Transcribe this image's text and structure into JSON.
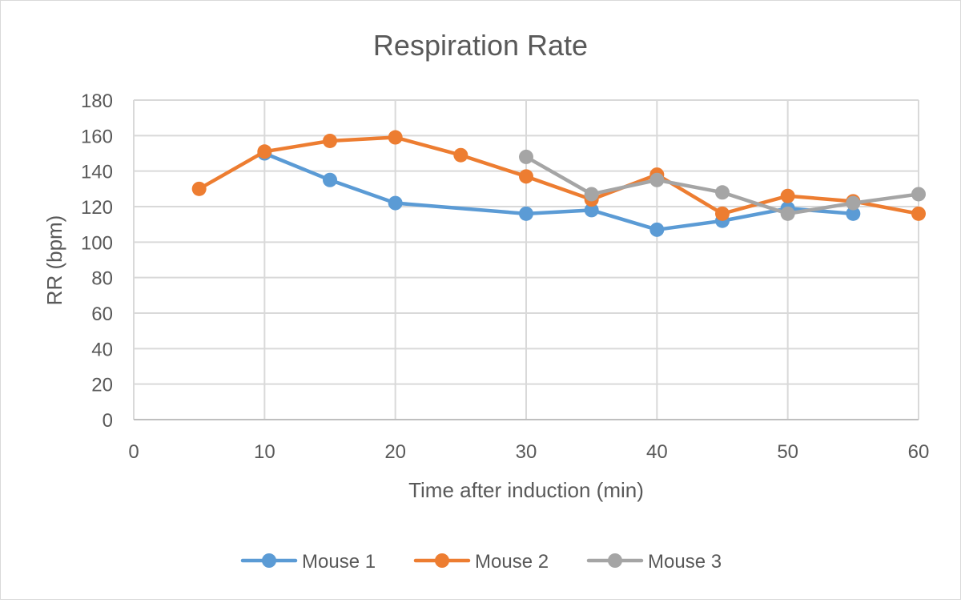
{
  "chart_data": {
    "type": "line",
    "title": "Respiration Rate",
    "xlabel": "Time after induction (min)",
    "ylabel": "RR (bpm)",
    "xlim": [
      0,
      60
    ],
    "ylim": [
      0,
      180
    ],
    "xticks": [
      0,
      10,
      20,
      30,
      40,
      50,
      60
    ],
    "yticks": [
      0,
      20,
      40,
      60,
      80,
      100,
      120,
      140,
      160,
      180
    ],
    "grid": true,
    "legend_position": "bottom",
    "series": [
      {
        "name": "Mouse 1",
        "color": "#5b9bd5",
        "x": [
          10,
          15,
          20,
          30,
          35,
          40,
          45,
          50,
          55
        ],
        "y": [
          150,
          135,
          122,
          116,
          118,
          107,
          112,
          119,
          116
        ]
      },
      {
        "name": "Mouse 2",
        "color": "#ed7d31",
        "x": [
          5,
          10,
          15,
          20,
          25,
          30,
          35,
          40,
          45,
          50,
          55,
          60
        ],
        "y": [
          130,
          151,
          157,
          159,
          149,
          137,
          124,
          138,
          116,
          126,
          123,
          116
        ]
      },
      {
        "name": "Mouse 3",
        "color": "#a5a5a5",
        "x": [
          30,
          35,
          40,
          45,
          50,
          55,
          60
        ],
        "y": [
          148,
          127,
          135,
          128,
          116,
          122,
          127
        ]
      }
    ]
  },
  "colors": {
    "axis_text": "#595959",
    "grid": "#d9d9d9"
  }
}
